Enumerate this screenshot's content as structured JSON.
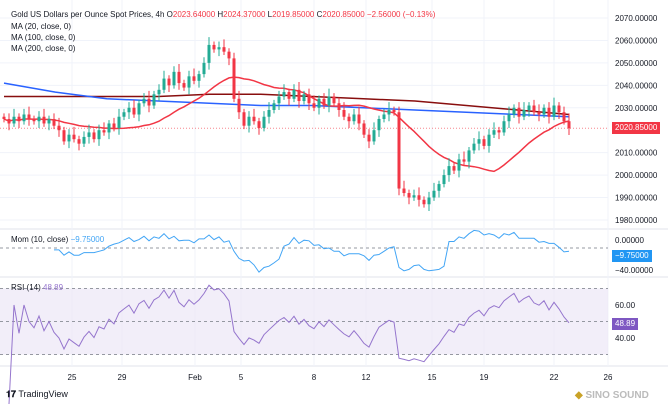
{
  "header": {
    "symbol": "Gold US Dollars per Ounce Spot Prices, 4h",
    "o_label": "O",
    "o": "2023.64000",
    "h_label": "H",
    "h": "2024.37000",
    "l_label": "L",
    "l": "2019.85000",
    "c_label": "C",
    "c": "2020.85000",
    "change": "−2.56000 (−0.13%)"
  },
  "indicators": {
    "ma20": "MA (20, close, 0)",
    "ma100": "MA (100, close, 0)",
    "ma200": "MA (200, close, 0)",
    "mom": "Mom (10, close)",
    "mom_value": "−9.75000",
    "rsi": "RSI (14)",
    "rsi_value": "48.89"
  },
  "colors": {
    "up": "#22ab94",
    "down": "#f23645",
    "ma20": "#f23645",
    "ma100": "#2962ff",
    "ma200": "#880e0e",
    "mom": "#42a5f5",
    "rsi": "#9575cd"
  },
  "chart_data": {
    "type": "candlestick",
    "title": "Gold US Dollars per Ounce Spot Prices, 4h",
    "ylim": [
      1975,
      2075
    ],
    "y_ticks": [
      "2070.00000",
      "2060.00000",
      "2050.00000",
      "2040.00000",
      "2030.00000",
      "2010.00000",
      "2000.00000",
      "1990.00000",
      "1980.00000"
    ],
    "last_price": "2020.85000",
    "x_ticks": [
      "25",
      "29",
      "Feb",
      "5",
      "8",
      "12",
      "15",
      "19",
      "22",
      "26"
    ],
    "closes": [
      2025,
      2023,
      2026,
      2024,
      2027,
      2025,
      2024,
      2026,
      2023,
      2025,
      2022,
      2020,
      2015,
      2018,
      2016,
      2014,
      2017,
      2019,
      2016,
      2020,
      2019,
      2023,
      2021,
      2026,
      2028,
      2030,
      2027,
      2032,
      2034,
      2031,
      2036,
      2038,
      2043,
      2040,
      2046,
      2041,
      2039,
      2044,
      2042,
      2045,
      2050,
      2058,
      2056,
      2057,
      2055,
      2052,
      2034,
      2028,
      2022,
      2026,
      2024,
      2021,
      2026,
      2029,
      2032,
      2035,
      2037,
      2034,
      2038,
      2033,
      2036,
      2032,
      2030,
      2034,
      2031,
      2035,
      2032,
      2029,
      2026,
      2024,
      2027,
      2023,
      2018,
      2015,
      2020,
      2025,
      2027,
      2029,
      2028,
      1994,
      1992,
      1990,
      1991,
      1989,
      1987,
      1990,
      1993,
      1996,
      2000,
      2004,
      2002,
      2007,
      2006,
      2011,
      2014,
      2016,
      2013,
      2018,
      2020,
      2019,
      2024,
      2027,
      2030,
      2026,
      2029,
      2031,
      2028,
      2027,
      2030,
      2026,
      2031,
      2028,
      2024,
      2020.85
    ],
    "ma100": [
      2041,
      2037,
      2034,
      2033,
      2032,
      2031,
      2031,
      2030,
      2029,
      2028,
      2027,
      2026
    ],
    "ma200": [
      2035,
      2035,
      2035,
      2035,
      2036,
      2036,
      2035,
      2034,
      2033,
      2031,
      2029,
      2027
    ],
    "momentum": {
      "label": "Mom (10, close)",
      "ticks": [
        "0.00000",
        "−40.00000"
      ]
    },
    "rsi": {
      "label": "RSI (14)",
      "ticks": [
        "60.00",
        "40.00"
      ],
      "band": [
        30,
        70
      ],
      "mid": 50
    }
  },
  "footer": {
    "brand": "TradingView",
    "watermark": "SINO SOUND"
  }
}
